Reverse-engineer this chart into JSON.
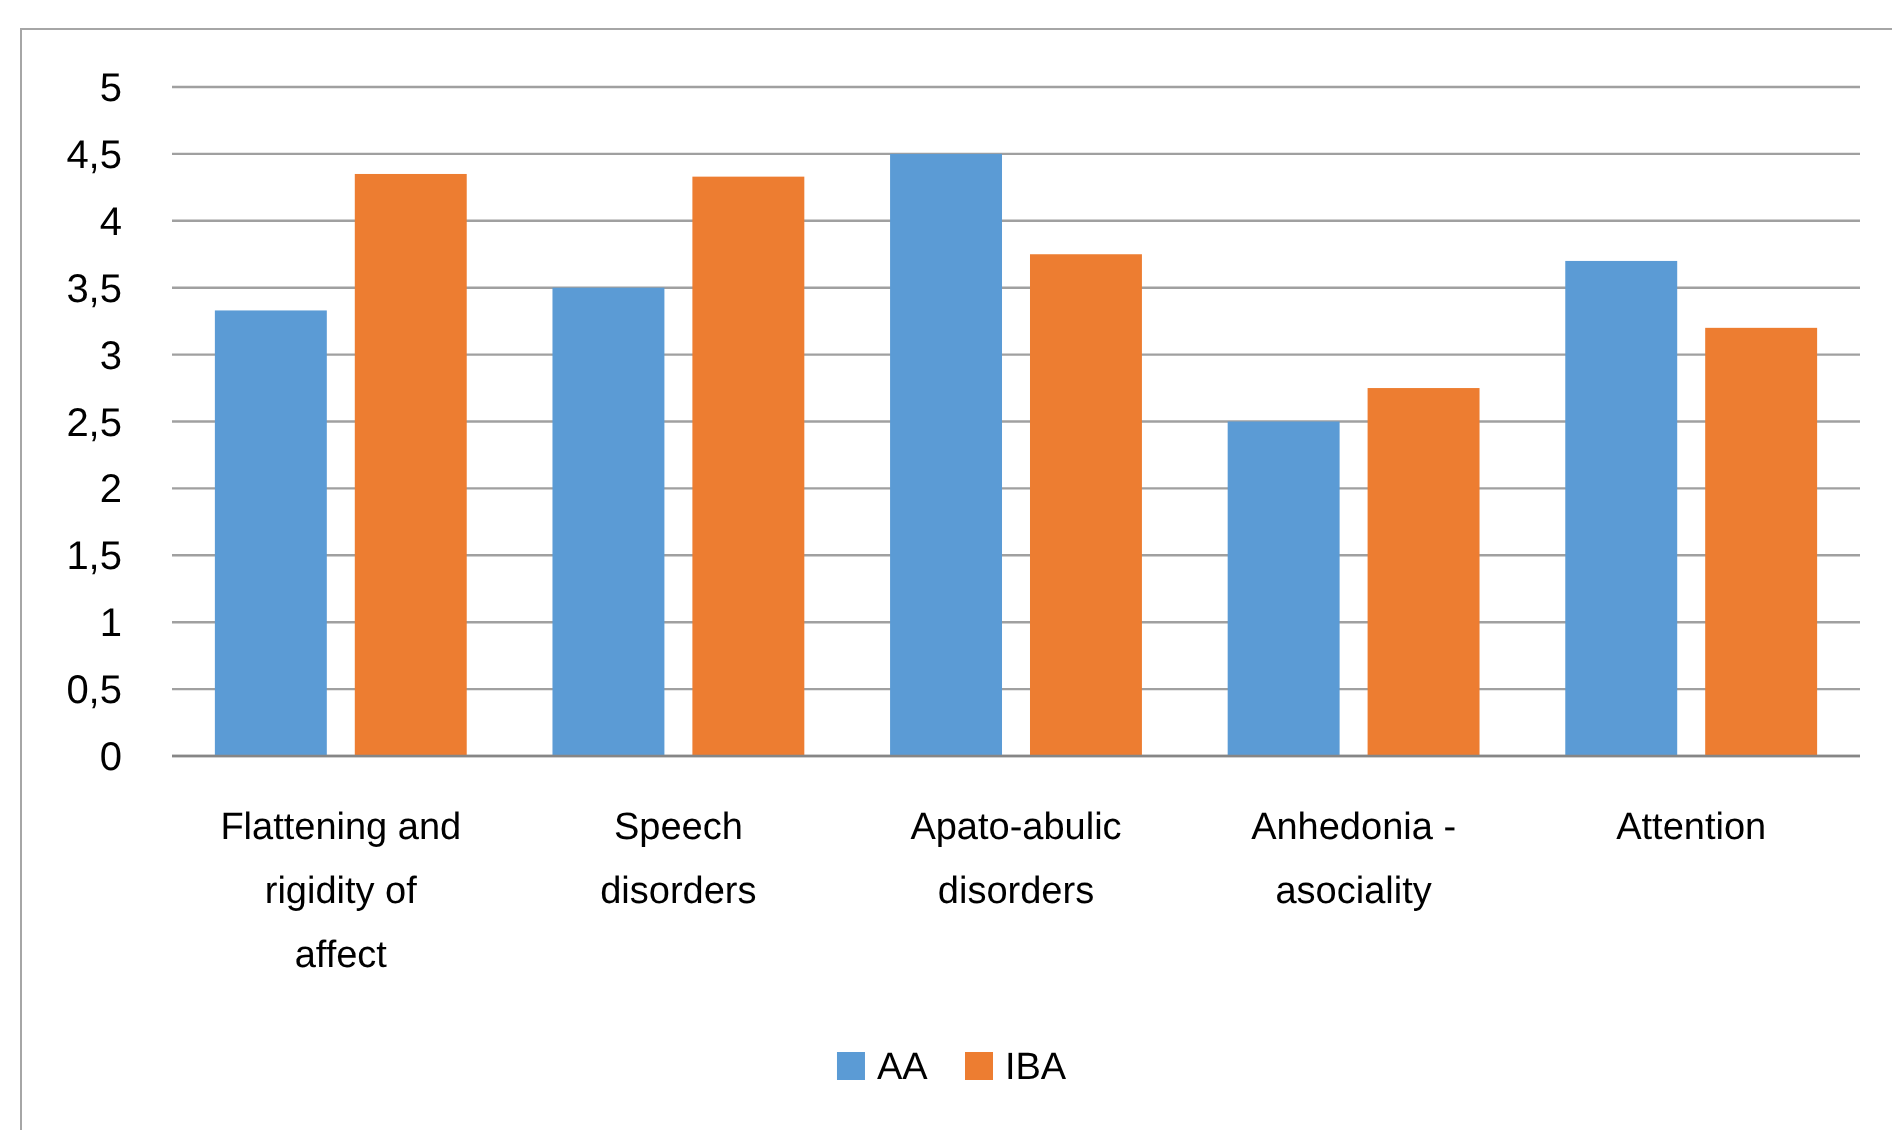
{
  "chart_data": {
    "type": "bar",
    "categories": [
      "Flattening and rigidity of affect",
      "Speech disorders",
      "Apato-abulic disorders",
      "Anhedonia - asociality",
      "Attention"
    ],
    "series": [
      {
        "name": "AA",
        "color": "#5b9bd5",
        "values": [
          3.33,
          3.5,
          4.5,
          2.5,
          3.7
        ]
      },
      {
        "name": "IBA",
        "color": "#ed7d31",
        "values": [
          4.35,
          4.33,
          3.75,
          2.75,
          3.2
        ]
      }
    ],
    "ylim": [
      0,
      5
    ],
    "yticks": [
      0,
      {
        "value": 0.5,
        "label": "0,5"
      },
      1,
      {
        "value": 1.5,
        "label": "1,5"
      },
      2,
      {
        "value": 2.5,
        "label": "2,5"
      },
      3,
      {
        "value": 3.5,
        "label": "3,5"
      },
      4,
      {
        "value": 4.5,
        "label": "4,5"
      },
      5
    ],
    "grid": "y",
    "legend": "bottom"
  }
}
